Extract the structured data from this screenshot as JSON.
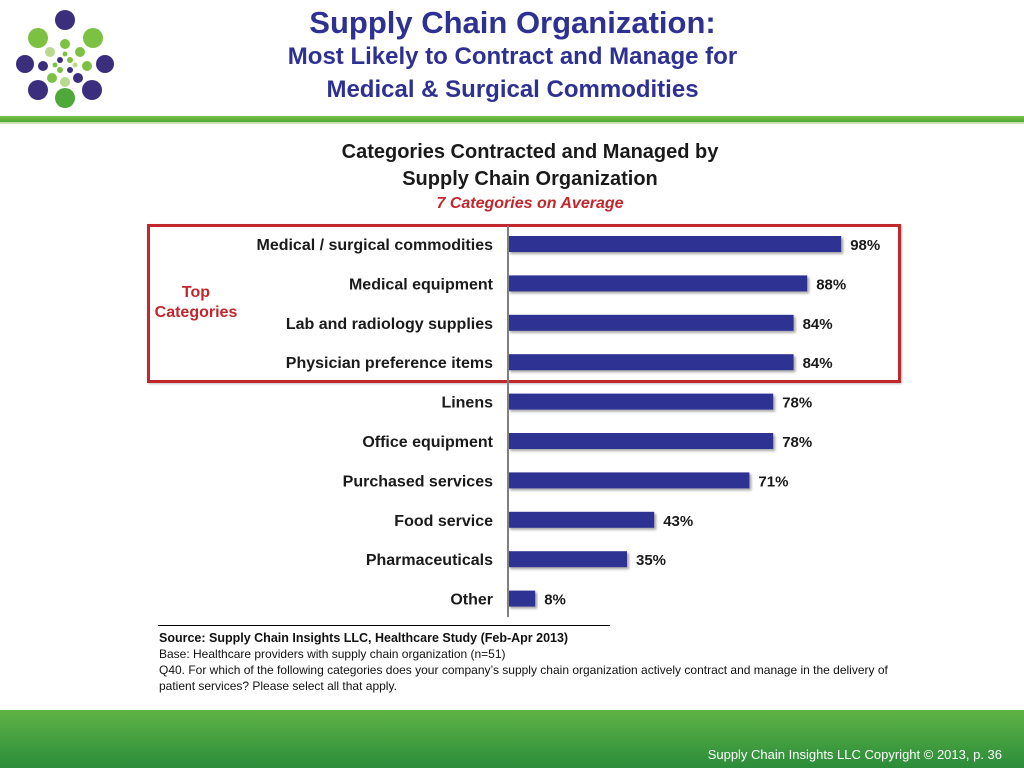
{
  "header": {
    "title": "Supply Chain Organization:",
    "subtitle_line1": "Most Likely to Contract and Manage for",
    "subtitle_line2": "Medical & Surgical Commodities"
  },
  "chart_data": {
    "type": "bar",
    "orientation": "horizontal",
    "title_line1": "Categories Contracted and Managed by",
    "title_line2": "Supply Chain Organization",
    "subtitle": "7 Categories on Average",
    "categories": [
      "Medical / surgical commodities",
      "Medical equipment",
      "Lab and radiology supplies",
      "Physician preference items",
      "Linens",
      "Office equipment",
      "Purchased services",
      "Food service",
      "Pharmaceuticals",
      "Other"
    ],
    "values": [
      98,
      88,
      84,
      84,
      78,
      78,
      71,
      43,
      35,
      8
    ],
    "value_labels": [
      "98%",
      "88%",
      "84%",
      "84%",
      "78%",
      "78%",
      "71%",
      "43%",
      "35%",
      "8%"
    ],
    "xlim": [
      0,
      100
    ],
    "bar_color": "#2e3192",
    "grid": false,
    "highlight": {
      "label_line1": "Top",
      "label_line2": "Categories",
      "indices": [
        0,
        1,
        2,
        3
      ],
      "color": "#c1272d"
    }
  },
  "source": {
    "title": "Source:  Supply Chain Insights LLC, Healthcare Study (Feb-Apr 2013)",
    "base": "Base: Healthcare providers with supply chain organization (n=51)",
    "question": "Q40. For which of the following categories does your company’s supply chain organization actively contract and manage in the delivery of patient services?  Please select all that apply."
  },
  "footer": {
    "copyright": "Supply Chain Insights LLC Copyright © 2013, p. 36"
  },
  "colors": {
    "title": "#2e3192",
    "accent_green": "#5fb446",
    "highlight_red": "#c1272d"
  }
}
